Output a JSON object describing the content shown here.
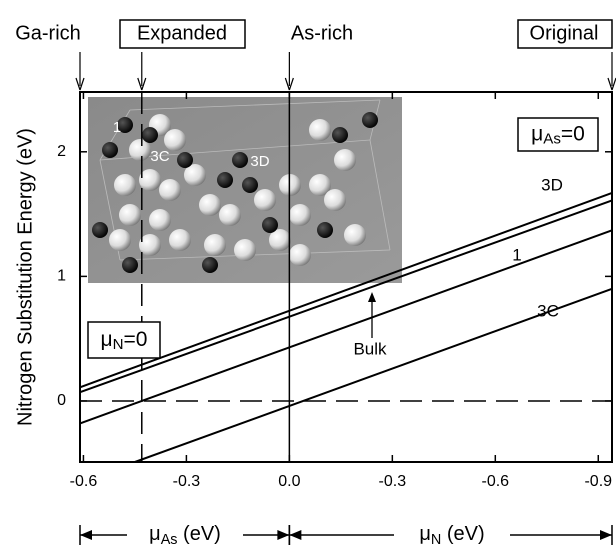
{
  "chart_data": {
    "type": "line",
    "y_label": "Nitrogen Substitution Energy (eV)",
    "xlim": [
      -0.61,
      0.94
    ],
    "ylim": [
      -0.49,
      2.48
    ],
    "xticks": [
      -0.6,
      -0.3,
      {
        "value": 0,
        "label": "0.0"
      },
      {
        "value": 0.3,
        "label": "-0.3"
      },
      {
        "value": 0.6,
        "label": "-0.6"
      },
      {
        "value": 0.9,
        "label": "-0.9"
      }
    ],
    "yticks": [
      0,
      1,
      2
    ],
    "series": [
      {
        "name": "3D",
        "color": "#000000",
        "x": [
          -0.61,
          0.94
        ],
        "values": [
          0.11,
          1.67
        ]
      },
      {
        "name": "Bulk",
        "color": "#000000",
        "x": [
          -0.61,
          0.94
        ],
        "values": [
          0.07,
          1.61
        ]
      },
      {
        "name": "1",
        "color": "#000000",
        "x": [
          -0.61,
          0.94
        ],
        "values": [
          -0.18,
          1.37
        ]
      },
      {
        "name": "3C",
        "color": "#000000",
        "x": [
          -0.45,
          0.94
        ],
        "values": [
          -0.49,
          0.9
        ]
      }
    ],
    "hlines": [
      {
        "value": 0,
        "style": "dashed"
      }
    ],
    "vlines": [
      {
        "value": -0.43,
        "style": "dashed"
      },
      {
        "value": 0,
        "style": "solid"
      }
    ],
    "top_markers": [
      {
        "text": "Ga-rich",
        "x": -0.61,
        "boxed": false
      },
      {
        "text": "Expanded",
        "x": -0.43,
        "boxed": true
      },
      {
        "text": "As-rich",
        "x": 0,
        "boxed": false
      },
      {
        "text": "Original",
        "x": 0.94,
        "boxed": true
      }
    ],
    "boxes": [
      {
        "mu": "μ",
        "sub": "As",
        "rest": "=0"
      },
      {
        "mu": "μ",
        "sub": "N",
        "rest": "=0"
      }
    ],
    "x_labels": [
      {
        "mu": "μ",
        "sub": "As",
        "rest": " (eV)"
      },
      {
        "mu": "μ",
        "sub": "N",
        "rest": " (eV)"
      }
    ],
    "inset_labels": [
      "1",
      "3C",
      "3D"
    ]
  }
}
